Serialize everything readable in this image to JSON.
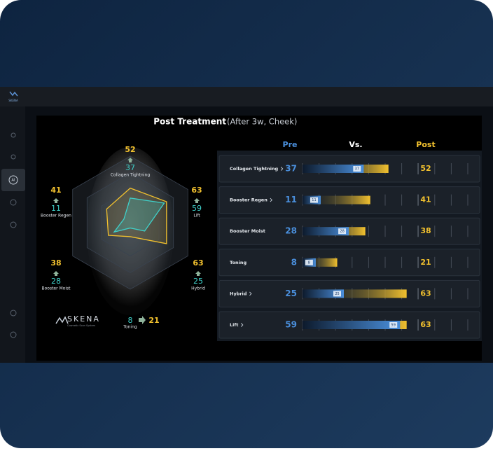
{
  "app": {
    "logo": "SKENA",
    "sidebar_active": "AI"
  },
  "title": "Post Treatment",
  "subtitle": "(After 3w, Cheek)",
  "brand": {
    "name": "SKENA",
    "tagline": "Cosmetic Scan System"
  },
  "columns": {
    "pre": "Pre",
    "vs": "Vs.",
    "post": "Post"
  },
  "chart_data": {
    "type": "comparison",
    "pre_color": "#4a8fdc",
    "post_color": "#f2c12e",
    "radar_pre_color": "#3fd0c9",
    "rlim": [
      0,
      100
    ],
    "xlim": [
      0,
      100
    ],
    "xticks": [
      10,
      20,
      30,
      40,
      50,
      60,
      70,
      80,
      90,
      100
    ],
    "metrics": [
      {
        "name": "Collagen Tightning",
        "pre": 37,
        "post": 52,
        "link": true
      },
      {
        "name": "Booster Regen",
        "pre": 11,
        "post": 41,
        "link": true
      },
      {
        "name": "Booster Moist",
        "pre": 28,
        "post": 38,
        "link": false
      },
      {
        "name": "Toning",
        "pre": 8,
        "post": 21,
        "link": false
      },
      {
        "name": "Hybrid",
        "pre": 25,
        "post": 63,
        "link": true
      },
      {
        "name": "Lift",
        "pre": 59,
        "post": 63,
        "link": true
      }
    ]
  }
}
